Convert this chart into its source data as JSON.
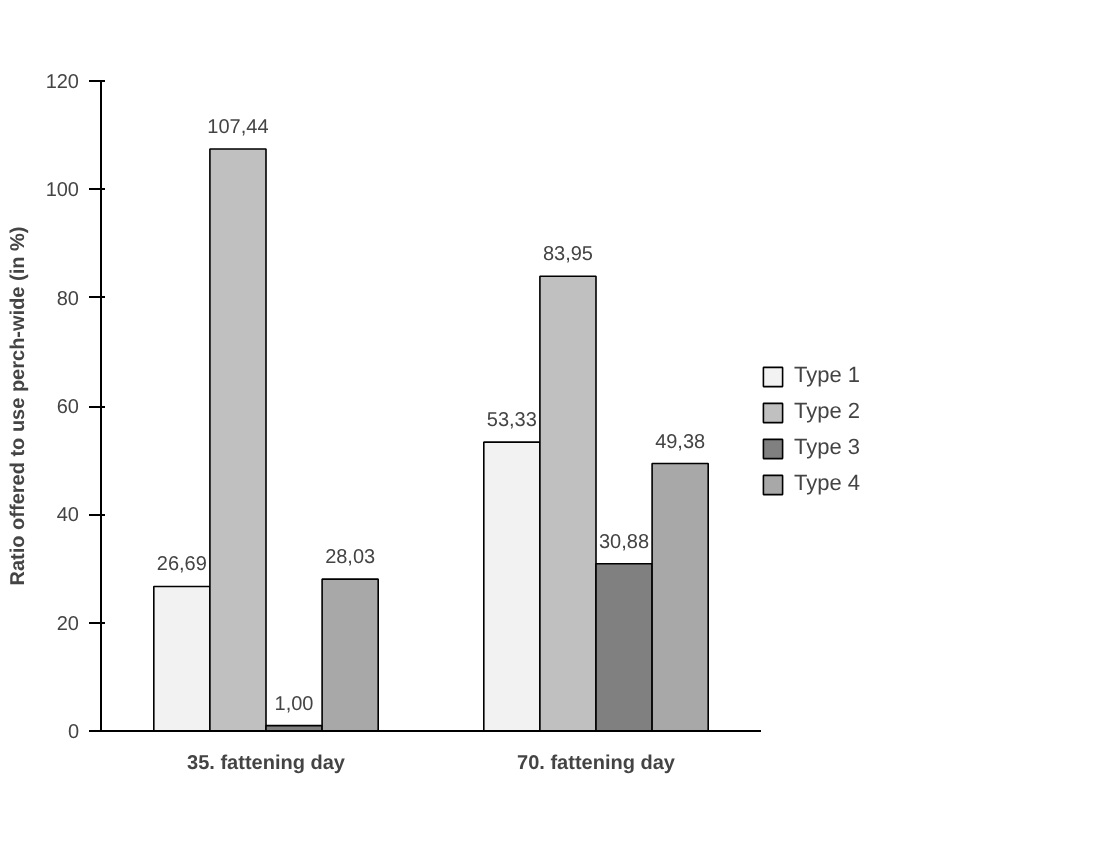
{
  "chart_data": {
    "type": "bar",
    "ylabel": "Ratio offered to use perch-wide (in %)",
    "categories": [
      "35. fattening day",
      "70. fattening day"
    ],
    "series": [
      {
        "name": "Type 1",
        "color": "#f2f2f2",
        "values": [
          26.69,
          53.33
        ],
        "value_labels": [
          "26,69",
          "53,33"
        ]
      },
      {
        "name": "Type 2",
        "color": "#c0c0c0",
        "values": [
          107.44,
          83.95
        ],
        "value_labels": [
          "107,44",
          "83,95"
        ]
      },
      {
        "name": "Type 3",
        "color": "#808080",
        "values": [
          1.0,
          30.88
        ],
        "value_labels": [
          "1,00",
          "30,88"
        ]
      },
      {
        "name": "Type 4",
        "color": "#a8a8a8",
        "values": [
          28.03,
          49.38
        ],
        "value_labels": [
          "28,03",
          "49,38"
        ]
      }
    ],
    "ylim": [
      0,
      120
    ],
    "yticks": [
      0,
      20,
      40,
      60,
      80,
      100,
      120
    ],
    "grid": false,
    "legend": "right"
  }
}
